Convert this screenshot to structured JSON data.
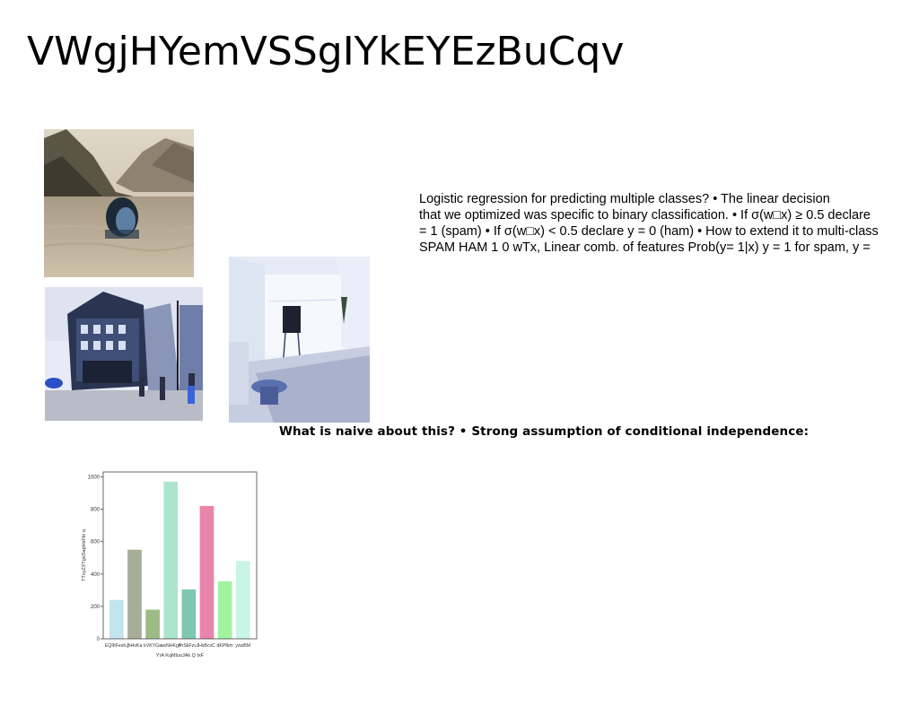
{
  "title": "VWgjHYemVSSgIYkEYEzBuCqv",
  "paragraph": {
    "lines": [
      "Logistic regression for predicting multiple classes? • The linear decision",
      "that we optimized was specific to binary classification. • If σ(w□x) ≥ 0.5 declare",
      "= 1 (spam) • If σ(w□x) < 0.5 declare y = 0 (ham) • How to extend it to multi-class",
      "SPAM HAM 1 0 wTx, Linear comb. of features Prob(y= 1|x) y = 1 for spam, y ="
    ]
  },
  "bold_line": "What is naive about this? • Strong assumption of conditional independence:",
  "images": {
    "photo1": "woman-in-water-photo",
    "photo2": "street-building-photo",
    "photo3": "white-living-room-photo"
  },
  "chart_data": {
    "type": "bar",
    "categories": [
      "EQIIIFeshJ",
      "jhHvKa",
      "kVKYGa",
      "wsNHKgh",
      "PrSkFzvJ",
      "HsBcvC",
      "dKPfkm",
      "yzwBM"
    ],
    "values": [
      240,
      550,
      180,
      970,
      305,
      820,
      355,
      480
    ],
    "colors": [
      "#c3e4ef",
      "#a8ad98",
      "#9dbb85",
      "#ade5cc",
      "#7ec8b2",
      "#e984aa",
      "#a2f2a2",
      "#c9f4e6"
    ],
    "xlabel": "YrA KqMluoJAk Q IxF",
    "ylabel": "TTxyZXTgoSapHsFtir q",
    "ylim": [
      0,
      1030
    ],
    "yticks": [
      0,
      200,
      400,
      600,
      800,
      1000
    ],
    "xtick_labels": [
      "EQIIIFeshJ",
      "jhHvKa",
      "kVKYGa",
      "wsNHKgh",
      "PrSkFzvJ",
      "HsBcvC",
      "dKPfkm",
      "yzwBM"
    ],
    "grid": false,
    "legend": "none"
  }
}
